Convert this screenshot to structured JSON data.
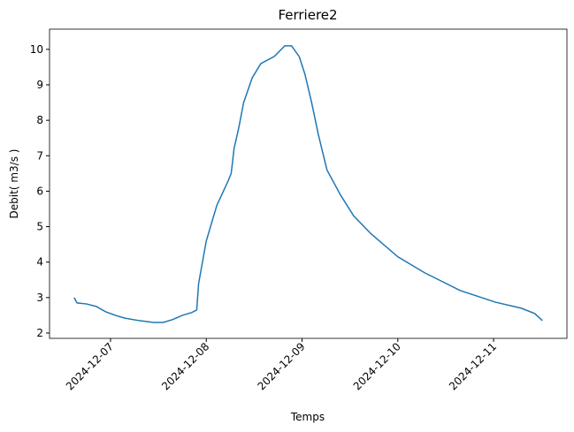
{
  "chart_data": {
    "type": "line",
    "title": "Ferriere2",
    "x_label": "Temps",
    "y_label": "Debit( m3/s )",
    "x": [
      6.62,
      6.65,
      6.75,
      6.85,
      6.95,
      7.05,
      7.15,
      7.3,
      7.45,
      7.55,
      7.65,
      7.75,
      7.85,
      7.9,
      7.92,
      8.0,
      8.11,
      8.23,
      8.26,
      8.29,
      8.34,
      8.39,
      8.48,
      8.57,
      8.71,
      8.82,
      8.89,
      8.97,
      9.03,
      9.1,
      9.17,
      9.26,
      9.4,
      9.54,
      9.72,
      10.0,
      10.28,
      10.65,
      11.02,
      11.29,
      11.43,
      11.51
    ],
    "series": [
      {
        "name": "Debit",
        "color": "#1f77b4",
        "values": [
          3.0,
          2.85,
          2.82,
          2.75,
          2.6,
          2.5,
          2.42,
          2.35,
          2.3,
          2.3,
          2.38,
          2.5,
          2.58,
          2.65,
          3.4,
          4.6,
          5.6,
          6.3,
          6.5,
          7.2,
          7.8,
          8.5,
          9.2,
          9.6,
          9.8,
          10.1,
          10.1,
          9.8,
          9.3,
          8.5,
          7.6,
          6.6,
          5.9,
          5.3,
          4.8,
          4.15,
          3.7,
          3.2,
          2.87,
          2.7,
          2.55,
          2.35
        ]
      }
    ],
    "xlim": [
      6.363,
      11.766
    ],
    "xticks": [
      {
        "value": 7,
        "label": "2024-12-07"
      },
      {
        "value": 8,
        "label": "2024-12-08"
      },
      {
        "value": 9,
        "label": "2024-12-09"
      },
      {
        "value": 10,
        "label": "2024-12-10"
      },
      {
        "value": 11,
        "label": "2024-12-11"
      }
    ],
    "ylim": [
      1.85,
      10.57
    ],
    "yticks": [
      2,
      3,
      4,
      5,
      6,
      7,
      8,
      9,
      10
    ]
  }
}
